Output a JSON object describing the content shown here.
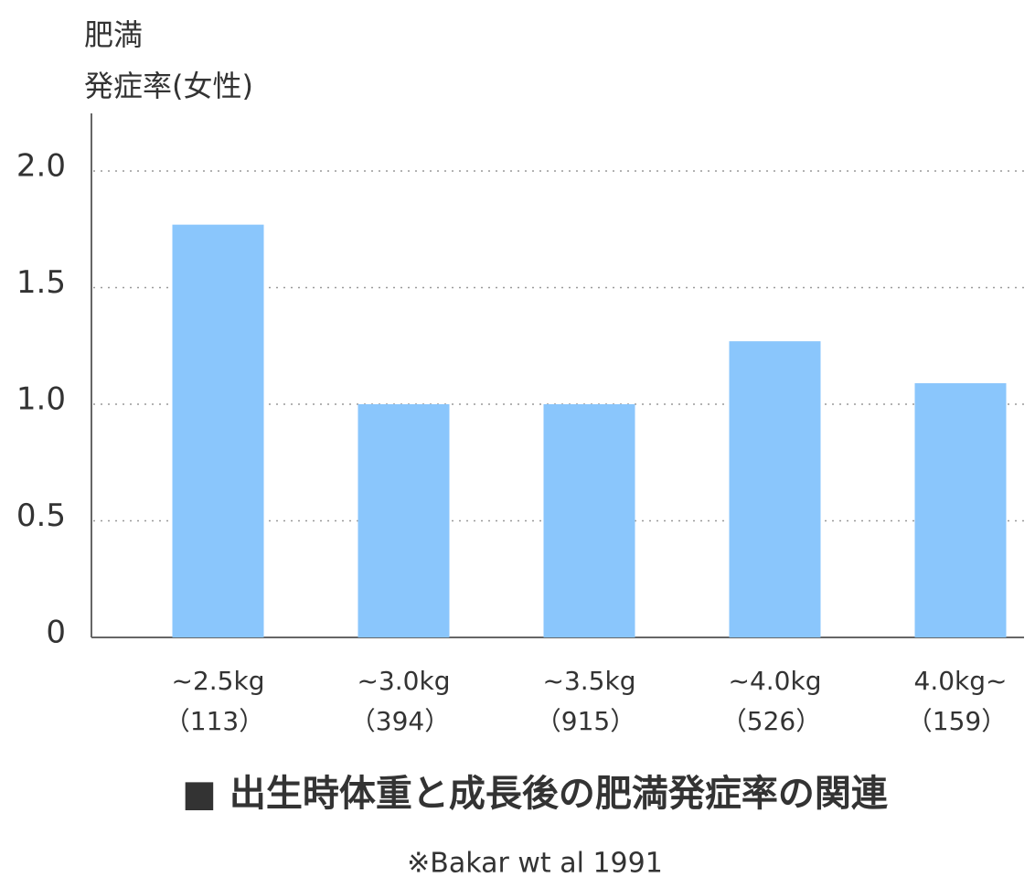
{
  "chart_data": {
    "type": "bar",
    "y_label_lines": [
      "肥満",
      "発症率(女性)"
    ],
    "title": "■ 出生時体重と成長後の肥満発症率の関連",
    "source": "※Bakar wt al 1991",
    "categories": [
      "~2.5kg",
      "~3.0kg",
      "~3.5kg",
      "~4.0kg",
      "4.0kg~"
    ],
    "sample_sizes": [
      "（113）",
      "（394）",
      "（915）",
      "（526）",
      "（159）"
    ],
    "values": [
      1.77,
      1.0,
      1.0,
      1.27,
      1.09
    ],
    "color": "#8ac6fc",
    "ylim": [
      0,
      2.25
    ],
    "yticks": [
      0,
      0.5,
      {
        "value": 1,
        "label": "1.0"
      },
      1.5,
      {
        "value": 2,
        "label": "2.0"
      }
    ],
    "grid": true
  }
}
